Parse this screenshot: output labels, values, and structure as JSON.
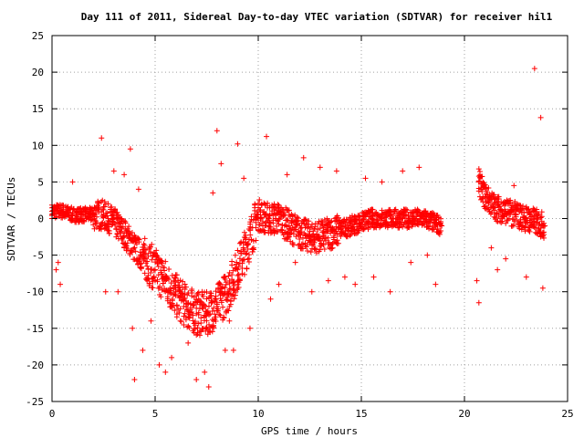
{
  "chart_data": {
    "type": "scatter",
    "title": "Day 111 of 2011, Sidereal Day-to-day VTEC variation (SDTVAR) for receiver hil1",
    "xlabel": "GPS time / hours",
    "ylabel": "SDTVAR / TECUs",
    "xlim": [
      0,
      25
    ],
    "ylim": [
      -25,
      25
    ],
    "x_ticks": [
      "0",
      "5",
      "10",
      "15",
      "20",
      "25"
    ],
    "y_ticks": [
      "25",
      "20",
      "15",
      "10",
      "5",
      "0",
      "-5",
      "-10",
      "-15",
      "-20",
      "-25"
    ],
    "grid": true,
    "marker": "plus",
    "color": "#ff0000",
    "series": [
      {
        "x": [
          0.0,
          0.5,
          1.0,
          1.5,
          2.0,
          2.5,
          3.0,
          3.5,
          4.0,
          4.5,
          5.0,
          5.5,
          6.0,
          6.5,
          7.0,
          7.5,
          8.0,
          8.5,
          9.0,
          9.5,
          10.0,
          10.5,
          11.0,
          11.5,
          12.0,
          12.5,
          13.0,
          13.5,
          14.0,
          14.5,
          15.0,
          15.5,
          16.0,
          16.5,
          17.0,
          17.5,
          18.0,
          18.5,
          18.9,
          20.7,
          21.0,
          21.5,
          22.0,
          22.5,
          23.0,
          23.5,
          23.9
        ],
        "y": [
          1.0,
          1.0,
          0.5,
          0.5,
          0.5,
          0.5,
          -0.5,
          -2.0,
          -4.0,
          -5.5,
          -7.0,
          -8.5,
          -10.5,
          -12.0,
          -13.0,
          -13.0,
          -12.0,
          -10.0,
          -7.0,
          -3.5,
          0.5,
          0.0,
          0.0,
          -1.0,
          -2.0,
          -2.5,
          -2.5,
          -2.0,
          -1.5,
          -1.0,
          -0.5,
          0.0,
          0.0,
          0.0,
          0.0,
          0.0,
          0.0,
          -0.5,
          -1.0,
          5.0,
          3.0,
          1.5,
          1.0,
          0.5,
          0.0,
          -0.5,
          -1.0
        ]
      },
      {
        "x": [
          0.2,
          0.3,
          0.4,
          1.0,
          2.4,
          2.6,
          3.0,
          3.2,
          3.5,
          3.8,
          3.9,
          4.0,
          4.2,
          4.4,
          4.8,
          5.2,
          5.5,
          5.8,
          6.2,
          6.6,
          7.0,
          7.4,
          7.6,
          7.8,
          8.0,
          8.2,
          8.4,
          8.6,
          8.8,
          9.0,
          9.3,
          9.6,
          10.4,
          10.6,
          11.0,
          11.4,
          11.8,
          12.2,
          12.6,
          13.0,
          13.4,
          13.8,
          14.2,
          14.7,
          15.2,
          15.6,
          16.0,
          16.4,
          17.0,
          17.4,
          17.8,
          18.2,
          18.6,
          20.6,
          20.7,
          21.3,
          21.6,
          22.0,
          22.4,
          23.0,
          23.4,
          23.7,
          23.8
        ],
        "y": [
          -7.0,
          -6.0,
          -9.0,
          5.0,
          11.0,
          -10.0,
          6.5,
          -10.0,
          6.0,
          9.5,
          -15.0,
          -22.0,
          4.0,
          -18.0,
          -14.0,
          -20.0,
          -21.0,
          -19.0,
          -10.0,
          -17.0,
          -22.0,
          -21.0,
          -23.0,
          3.5,
          12.0,
          7.5,
          -18.0,
          -14.0,
          -18.0,
          10.2,
          5.5,
          -15.0,
          11.2,
          -11.0,
          -9.0,
          6.0,
          -6.0,
          8.3,
          -10.0,
          7.0,
          -8.5,
          6.5,
          -8.0,
          -9.0,
          5.5,
          -8.0,
          5.0,
          -10.0,
          6.5,
          -6.0,
          7.0,
          -5.0,
          -9.0,
          -8.5,
          -11.5,
          -4.0,
          -7.0,
          -5.5,
          4.5,
          -8.0,
          20.5,
          13.8,
          -9.5
        ]
      }
    ]
  }
}
